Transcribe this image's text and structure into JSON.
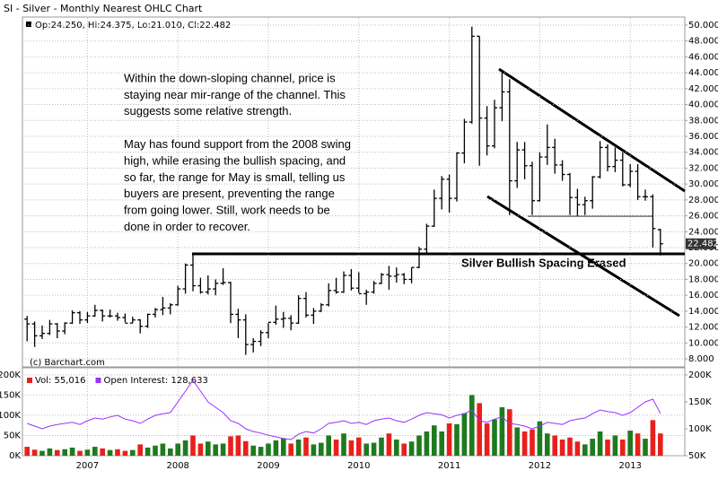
{
  "chart_data": [
    {
      "type": "ohlc",
      "title": "SI - Silver - Monthly Nearest OHLC Chart",
      "legend": "Op:24.250, Hi:24.375, Lo:21.010, Cl:22.482",
      "credit": "(c) Barchart.com",
      "color": "#000000",
      "grid": true,
      "categories": [
        null,
        null,
        null,
        null,
        null,
        null,
        null,
        null,
        "2007",
        null,
        null,
        null,
        null,
        null,
        null,
        null,
        null,
        null,
        null,
        null,
        "2008",
        null,
        null,
        null,
        null,
        null,
        null,
        null,
        null,
        null,
        null,
        null,
        "2009",
        null,
        null,
        null,
        null,
        null,
        null,
        null,
        null,
        null,
        null,
        null,
        "2010",
        null,
        null,
        null,
        null,
        null,
        null,
        null,
        null,
        null,
        null,
        null,
        "2011",
        null,
        null,
        null,
        null,
        null,
        null,
        null,
        null,
        null,
        null,
        null,
        "2012",
        null,
        null,
        null,
        null,
        null,
        null,
        null,
        null,
        null,
        null,
        null,
        "2013",
        null,
        null,
        null,
        null
      ],
      "open": [
        13.0,
        12.4,
        10.9,
        11.2,
        12.4,
        11.5,
        12.5,
        13.8,
        12.9,
        13.4,
        14.1,
        13.4,
        13.4,
        13.2,
        12.5,
        12.9,
        12.1,
        13.6,
        14.2,
        14.4,
        14.8,
        16.8,
        19.8,
        17.2,
        16.4,
        16.8,
        17.5,
        17.6,
        13.6,
        12.9,
        9.8,
        10.2,
        11.3,
        12.6,
        13.0,
        13.1,
        12.5,
        15.6,
        13.5,
        14.0,
        14.8,
        16.6,
        16.4,
        18.5,
        16.9,
        16.2,
        16.4,
        17.5,
        18.6,
        18.4,
        18.6,
        18.0,
        19.5,
        21.8,
        24.7,
        28.2,
        30.6,
        28.2,
        33.9,
        37.8,
        48.6,
        38.3,
        34.8,
        39.6,
        41.6,
        30.4,
        34.3,
        32.3,
        27.9,
        33.4,
        34.6,
        32.4,
        31.2,
        28.3,
        27.4,
        27.9,
        30.9,
        34.6,
        32.2,
        33.0,
        29.9,
        31.6,
        28.4,
        28.4,
        24.25
      ],
      "high": [
        13.4,
        12.7,
        12.2,
        12.9,
        12.5,
        12.6,
        14.1,
        14.0,
        13.9,
        14.8,
        14.2,
        14.2,
        13.8,
        13.7,
        13.3,
        13.0,
        13.7,
        14.4,
        15.8,
        15.0,
        17.2,
        20.0,
        21.3,
        18.2,
        18.5,
        18.0,
        19.4,
        17.7,
        14.3,
        13.6,
        10.6,
        11.6,
        12.5,
        14.7,
        13.9,
        13.5,
        16.0,
        16.4,
        14.4,
        15.0,
        17.5,
        18.2,
        19.0,
        19.3,
        18.9,
        16.7,
        17.8,
        18.8,
        19.7,
        19.5,
        18.8,
        19.5,
        22.1,
        25.0,
        29.3,
        31.0,
        31.2,
        34.0,
        38.2,
        49.8,
        48.6,
        39.8,
        40.6,
        44.3,
        43.2,
        35.3,
        35.3,
        32.8,
        34.0,
        37.5,
        35.7,
        33.0,
        31.4,
        29.4,
        28.4,
        31.0,
        35.4,
        35.0,
        34.6,
        34.0,
        32.5,
        32.5,
        29.3,
        28.7,
        24.375
      ],
      "low": [
        10.2,
        9.5,
        10.5,
        11.0,
        10.6,
        11.1,
        12.4,
        12.4,
        12.5,
        13.3,
        12.7,
        13.2,
        12.8,
        12.6,
        12.5,
        11.2,
        11.9,
        13.2,
        13.5,
        13.6,
        14.7,
        16.2,
        16.5,
        16.2,
        16.1,
        16.0,
        17.3,
        12.5,
        10.6,
        8.5,
        8.8,
        9.6,
        10.6,
        12.3,
        11.9,
        11.6,
        12.4,
        13.2,
        12.4,
        13.9,
        14.6,
        16.2,
        16.3,
        16.6,
        16.3,
        14.8,
        16.2,
        17.4,
        16.7,
        17.6,
        17.4,
        17.5,
        19.4,
        21.3,
        24.6,
        26.8,
        26.4,
        27.8,
        32.6,
        37.6,
        32.3,
        33.6,
        34.5,
        37.9,
        26.1,
        29.5,
        30.6,
        26.1,
        27.8,
        32.4,
        31.3,
        30.4,
        26.1,
        26.0,
        26.1,
        26.9,
        30.7,
        31.6,
        31.5,
        29.7,
        29.6,
        28.0,
        27.9,
        22.0,
        21.01
      ],
      "close": [
        12.4,
        10.9,
        11.2,
        12.4,
        11.5,
        12.5,
        13.8,
        12.9,
        13.4,
        14.1,
        13.4,
        13.4,
        13.2,
        12.5,
        12.9,
        12.1,
        13.6,
        14.2,
        14.4,
        14.8,
        16.8,
        19.8,
        17.2,
        16.4,
        16.8,
        17.5,
        17.6,
        13.6,
        12.9,
        9.8,
        10.2,
        11.3,
        12.6,
        13.0,
        13.1,
        12.5,
        15.6,
        13.5,
        14.0,
        14.8,
        16.6,
        16.4,
        18.5,
        16.9,
        16.2,
        16.4,
        17.5,
        18.6,
        18.4,
        18.6,
        18.0,
        19.5,
        21.8,
        24.7,
        28.2,
        30.6,
        28.2,
        33.9,
        37.8,
        48.6,
        38.3,
        34.8,
        39.6,
        41.6,
        30.4,
        34.3,
        32.3,
        27.9,
        33.4,
        34.6,
        32.4,
        31.2,
        28.3,
        27.4,
        27.9,
        30.9,
        34.6,
        32.2,
        33.0,
        29.9,
        31.6,
        28.4,
        28.4,
        24.4,
        22.482
      ],
      "ylim": [
        7.1,
        50.9
      ],
      "yticks": [
        {
          "value": 8,
          "label": "8.000"
        },
        {
          "value": 10,
          "label": "10.000"
        },
        {
          "value": 12,
          "label": "12.000"
        },
        {
          "value": 14,
          "label": "14.000"
        },
        {
          "value": 16,
          "label": "16.000"
        },
        {
          "value": 18,
          "label": "18.000"
        },
        {
          "value": 20,
          "label": "20.000"
        },
        {
          "value": 22,
          "label": "22.000"
        },
        {
          "value": 24,
          "label": "24.000"
        },
        {
          "value": 26,
          "label": "26.000"
        },
        {
          "value": 28,
          "label": "28.000"
        },
        {
          "value": 30,
          "label": "30.000"
        },
        {
          "value": 32,
          "label": "32.000"
        },
        {
          "value": 34,
          "label": "34.000"
        },
        {
          "value": 36,
          "label": "36.000"
        },
        {
          "value": 38,
          "label": "38.000"
        },
        {
          "value": 40,
          "label": "40.000"
        },
        {
          "value": 42,
          "label": "42.000"
        },
        {
          "value": 44,
          "label": "44.000"
        },
        {
          "value": 46,
          "label": "46.000"
        },
        {
          "value": 48,
          "label": "48.000"
        },
        {
          "value": 50,
          "label": "50.000"
        }
      ],
      "annotations": [
        "Within the down-sloping channel, price is",
        "staying near mir-range of the channel.  This",
        "suggests some relative strength.",
        "",
        "May has found support from the 2008 swing",
        "high, while erasing the bullish spacing, and",
        "so far, the range for May is small, telling us",
        "buyers are present, preventing the range",
        "from going lower.  Still, work needs to be",
        "done in order to recover."
      ],
      "callout": "Silver Bullish Spacing Erased"
    },
    {
      "type": "volume",
      "up_color": "#1f7a1f",
      "down_color": "#e8201c",
      "grid": true,
      "series": [
        {
          "name": "Vol: 55,016",
          "color": "#e8201c",
          "values": [
            22000,
            15000,
            12000,
            18000,
            14000,
            16000,
            20000,
            12000,
            15000,
            22000,
            18000,
            14000,
            16000,
            12000,
            14000,
            28000,
            20000,
            25000,
            30000,
            18000,
            30000,
            38000,
            50000,
            30000,
            35000,
            28000,
            30000,
            48000,
            50000,
            36000,
            25000,
            22000,
            30000,
            38000,
            42000,
            30000,
            40000,
            45000,
            28000,
            32000,
            50000,
            40000,
            55000,
            38000,
            45000,
            30000,
            32000,
            45000,
            55000,
            40000,
            30000,
            35000,
            50000,
            60000,
            75000,
            60000,
            80000,
            78000,
            105000,
            150000,
            130000,
            80000,
            90000,
            120000,
            115000,
            70000,
            60000,
            65000,
            85000,
            55000,
            50000,
            40000,
            45000,
            35000,
            28000,
            42000,
            60000,
            40000,
            50000,
            40000,
            62000,
            55000,
            42000,
            88000,
            55016
          ]
        },
        {
          "name": "Open Interest: 128,633",
          "color": "#9b30ff",
          "axis": "y2",
          "values": [
            110000,
            105000,
            100000,
            105000,
            108000,
            110000,
            112000,
            108000,
            115000,
            120000,
            118000,
            122000,
            125000,
            118000,
            115000,
            110000,
            118000,
            125000,
            128000,
            130000,
            150000,
            170000,
            190000,
            170000,
            150000,
            140000,
            130000,
            115000,
            110000,
            100000,
            95000,
            92000,
            88000,
            85000,
            82000,
            80000,
            90000,
            95000,
            92000,
            100000,
            110000,
            112000,
            115000,
            110000,
            112000,
            108000,
            115000,
            118000,
            120000,
            115000,
            112000,
            118000,
            125000,
            130000,
            128000,
            126000,
            120000,
            125000,
            128000,
            135000,
            115000,
            112000,
            118000,
            122000,
            110000,
            108000,
            105000,
            100000,
            105000,
            112000,
            110000,
            108000,
            115000,
            118000,
            120000,
            128000,
            135000,
            132000,
            130000,
            125000,
            130000,
            140000,
            150000,
            155000,
            128633
          ]
        }
      ],
      "ylim": [
        0,
        213000
      ],
      "yticks": [
        {
          "value": 0,
          "label": "0K"
        },
        {
          "value": 50000,
          "label": "50K"
        },
        {
          "value": 100000,
          "label": "100K"
        },
        {
          "value": 150000,
          "label": "150K"
        },
        {
          "value": 200000,
          "label": "200K"
        }
      ],
      "y2lim": [
        50000,
        210000
      ],
      "y2ticks": [
        {
          "value": 50000,
          "label": "50K"
        },
        {
          "value": 100000,
          "label": "100K"
        },
        {
          "value": 150000,
          "label": "150K"
        },
        {
          "value": 200000,
          "label": "200K"
        }
      ]
    }
  ]
}
